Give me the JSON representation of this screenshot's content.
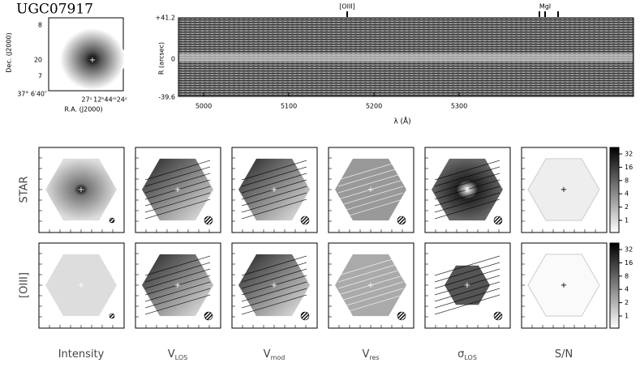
{
  "header": {
    "title": "UGC07917"
  },
  "image": {
    "y_label": "Dec. (J2000)",
    "x_label": "R.A. (J2000)",
    "y_ticks": [
      "8",
      "20",
      "7",
      "37° 6′40″"
    ],
    "x_ticks": [
      "27ˢ",
      "12ʰ44ᵐ24ˢ"
    ]
  },
  "spectrum": {
    "line_labels": [
      "[OIII]",
      "MgI"
    ],
    "y_label": "R (arcsec)",
    "y_ticks": [
      "+41.2",
      "0",
      "-39.6"
    ],
    "x_ticks": [
      5000,
      5100,
      5200,
      5300
    ],
    "x_label": "λ (Å)"
  },
  "maps": {
    "rows": [
      "STAR",
      "[OIII]"
    ],
    "columns": [
      {
        "label": "Intensity"
      },
      {
        "label": "V",
        "sub": "LOS"
      },
      {
        "label": "V",
        "sub": "mod"
      },
      {
        "label": "V",
        "sub": "res"
      },
      {
        "label": "σ",
        "sub": "LOS"
      },
      {
        "label": "S/N"
      }
    ],
    "colorbar_ticks": [
      32,
      16,
      8,
      4,
      2,
      1
    ]
  }
}
